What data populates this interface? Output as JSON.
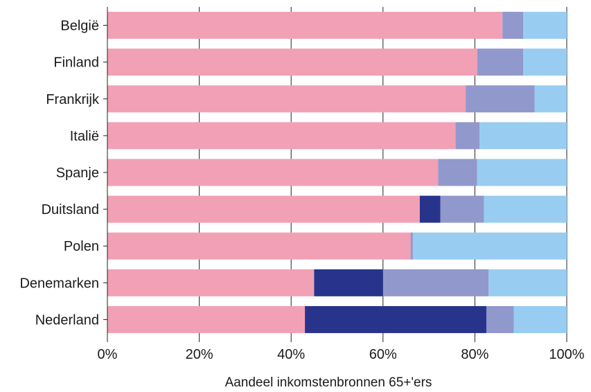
{
  "chart_data": {
    "type": "bar",
    "orientation": "horizontal",
    "stacked": true,
    "categories": [
      "België",
      "Finland",
      "Frankrijk",
      "Italië",
      "Spanje",
      "Duitsland",
      "Polen",
      "Denemarken",
      "Nederland"
    ],
    "series": [
      {
        "values": [
          86,
          80.5,
          78,
          75.8,
          72,
          68,
          66,
          45,
          43
        ],
        "color": "#f2a0b6"
      },
      {
        "values": [
          0,
          0,
          0,
          0,
          0,
          4.5,
          0,
          15,
          39.5
        ],
        "color": "#28348c"
      },
      {
        "values": [
          4.5,
          10,
          15,
          5.2,
          8.5,
          9.5,
          0.5,
          23,
          6
        ],
        "color": "#9198cc"
      },
      {
        "values": [
          9.5,
          9.5,
          7,
          19,
          19.5,
          18,
          33.5,
          17,
          11.5
        ],
        "color": "#98cdf1"
      }
    ],
    "xlabel": "Aandeel inkomstenbronnen 65+'ers",
    "ylabel": "",
    "xlim": [
      0,
      100
    ],
    "xticks": [
      0,
      20,
      40,
      60,
      80,
      100
    ],
    "xtick_labels": [
      "0%",
      "20%",
      "40%",
      "60%",
      "80%",
      "100%"
    ],
    "grid": "vertical",
    "legend": "none"
  }
}
